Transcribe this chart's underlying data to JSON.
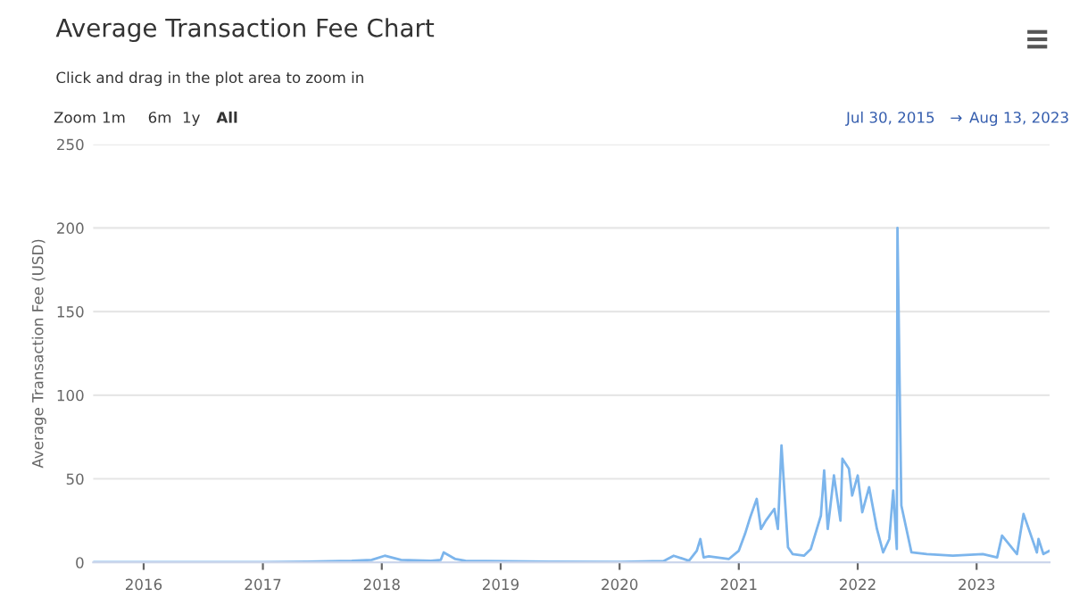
{
  "chart_data": {
    "type": "line",
    "title": "Average Transaction Fee Chart",
    "subtitle": "Click and drag in the plot area to zoom in",
    "ylabel": "Average Transaction Fee (USD)",
    "annotations": [
      "Zoom",
      "1m",
      "6m",
      "1y",
      "All",
      "Jul 30, 2015",
      "→",
      "Aug 13, 2023"
    ],
    "x": [
      "2015-07-30",
      "2016-06-01",
      "2017-01-01",
      "2017-05-15",
      "2017-10-01",
      "2017-12-01",
      "2018-01-10",
      "2018-03-01",
      "2018-06-01",
      "2018-07-01",
      "2018-07-10",
      "2018-08-15",
      "2018-09-15",
      "2019-06-01",
      "2020-01-01",
      "2020-05-15",
      "2020-06-15",
      "2020-08-01",
      "2020-08-25",
      "2020-09-05",
      "2020-09-15",
      "2020-10-01",
      "2020-12-01",
      "2021-01-01",
      "2021-01-20",
      "2021-02-05",
      "2021-02-25",
      "2021-03-10",
      "2021-03-25",
      "2021-04-20",
      "2021-05-01",
      "2021-05-12",
      "2021-06-01",
      "2021-06-15",
      "2021-07-20",
      "2021-08-10",
      "2021-09-10",
      "2021-09-20",
      "2021-10-01",
      "2021-10-20",
      "2021-11-09",
      "2021-11-15",
      "2021-12-05",
      "2021-12-15",
      "2022-01-01",
      "2022-01-15",
      "2022-02-05",
      "2022-03-01",
      "2022-03-20",
      "2022-04-08",
      "2022-04-20",
      "2022-05-01",
      "2022-05-03",
      "2022-05-15",
      "2022-06-15",
      "2022-08-01",
      "2022-10-20",
      "2023-01-20",
      "2023-03-05",
      "2023-03-20",
      "2023-05-05",
      "2023-05-25",
      "2023-07-05",
      "2023-07-10",
      "2023-07-25",
      "2023-08-13"
    ],
    "values": [
      0.2,
      0.2,
      0.2,
      0.5,
      1,
      1.5,
      4,
      1.5,
      1,
      1.5,
      6,
      2,
      1,
      0.5,
      0.3,
      0.8,
      4,
      1,
      7,
      14,
      3,
      3.6,
      2,
      7,
      17,
      27,
      38,
      20,
      25,
      32,
      20,
      70,
      9,
      5,
      4,
      8,
      28,
      55,
      20,
      52,
      25,
      62,
      56,
      40,
      52,
      30,
      45,
      20,
      6,
      14,
      43,
      8,
      200,
      34,
      6,
      5,
      4,
      5,
      3,
      16,
      5,
      29,
      6,
      14,
      5,
      7
    ],
    "color": "#7cb5ec",
    "xlim": [
      "2015-07-30",
      "2023-08-13"
    ],
    "xticks": [
      {
        "value": "2016-01-01",
        "label": "2016"
      },
      {
        "value": "2017-01-01",
        "label": "2017"
      },
      {
        "value": "2018-01-01",
        "label": "2018"
      },
      {
        "value": "2019-01-01",
        "label": "2019"
      },
      {
        "value": "2020-01-01",
        "label": "2020"
      },
      {
        "value": "2021-01-01",
        "label": "2021"
      },
      {
        "value": "2022-01-01",
        "label": "2022"
      },
      {
        "value": "2023-01-01",
        "label": "2023"
      }
    ],
    "ylim": [
      0,
      250
    ],
    "yticks": [
      0,
      50,
      100,
      150,
      200,
      250
    ],
    "grid": "y",
    "legend": false
  }
}
